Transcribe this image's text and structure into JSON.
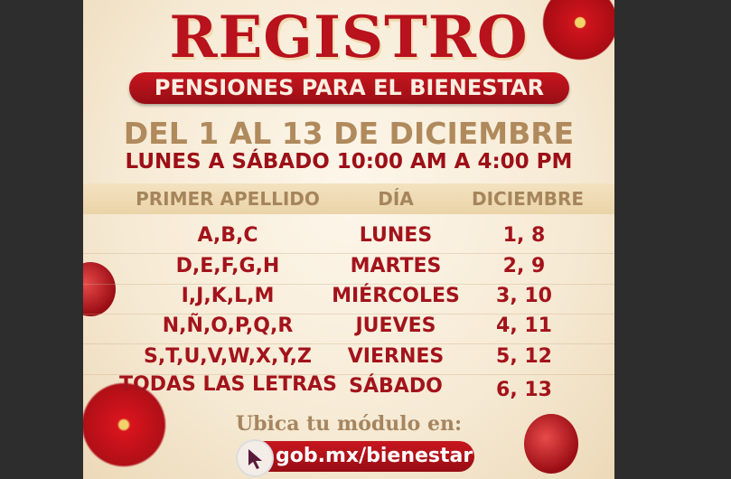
{
  "poster": {
    "title": "REGISTRO",
    "subtitle": "PENSIONES PARA EL BIENESTAR",
    "dates": "DEL 1 AL 13 DE DICIEMBRE",
    "hours": "LUNES A SÁBADO 10:00 AM A 4:00 PM",
    "table": {
      "headers": [
        "PRIMER APELLIDO",
        "DÍA",
        "DICIEMBRE"
      ],
      "rows": [
        {
          "letters": "A,B,C",
          "day": "LUNES",
          "dates": "1, 8"
        },
        {
          "letters": "D,E,F,G,H",
          "day": "MARTES",
          "dates": "2, 9"
        },
        {
          "letters": "I,J,K,L,M",
          "day": "MIÉRCOLES",
          "dates": "3, 10"
        },
        {
          "letters": "N,Ñ,O,P,Q,R",
          "day": "JUEVES",
          "dates": "4, 11"
        },
        {
          "letters": "S,T,U,V,W,X,Y,Z",
          "day": "VIERNES",
          "dates": "5, 12"
        },
        {
          "letters": "TODAS LAS LETRAS",
          "day": "SÁBADO",
          "dates": "6, 13"
        }
      ]
    },
    "locate_text": "Ubica tu módulo en:",
    "link": "gob.mx/bienestar",
    "colors": {
      "red": "#b8121c",
      "gold": "#b08a5c",
      "background": "#2d2d2d"
    }
  }
}
